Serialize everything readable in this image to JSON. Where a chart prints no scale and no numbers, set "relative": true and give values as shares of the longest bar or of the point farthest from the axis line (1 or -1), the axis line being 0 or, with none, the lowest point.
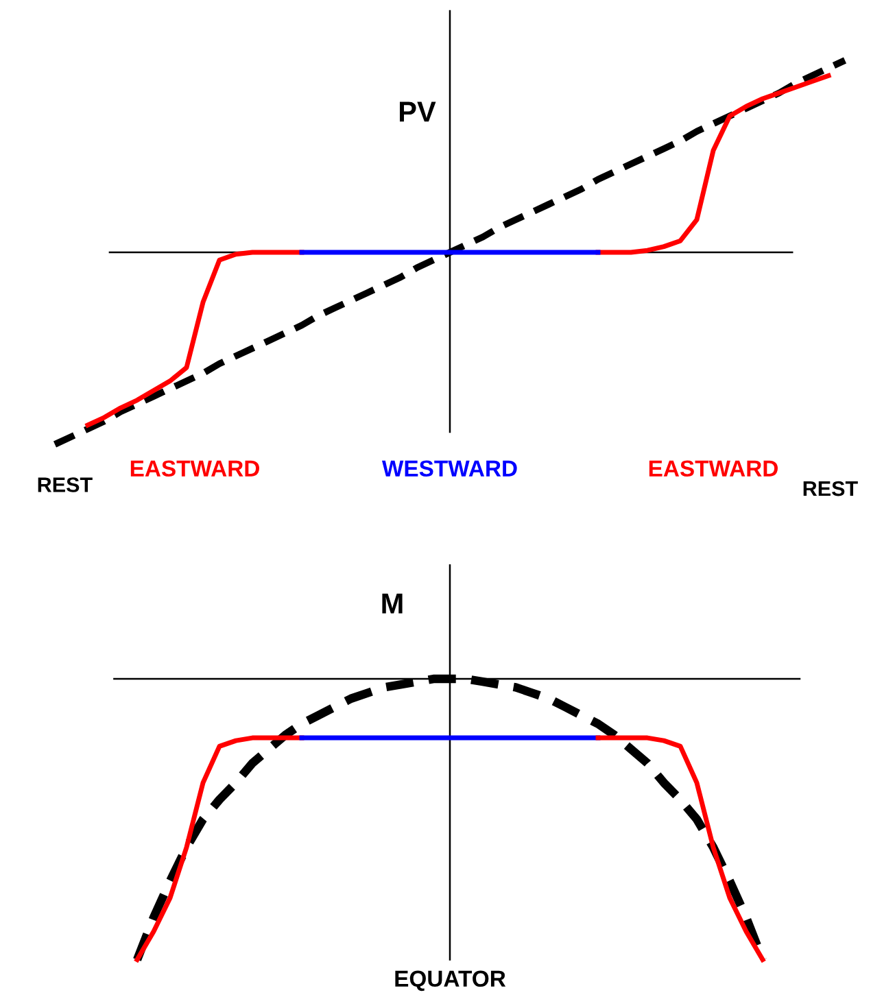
{
  "chart_data": [
    {
      "type": "line",
      "relative": true,
      "ylabel": "PV",
      "categories": [
        null,
        null,
        null,
        null,
        null,
        null,
        null,
        null,
        null,
        null,
        null,
        null,
        null,
        null,
        null,
        null,
        null,
        null,
        null,
        null,
        null,
        null,
        null,
        null,
        null,
        null,
        null,
        null,
        null,
        null,
        null,
        null,
        null,
        null,
        null,
        null,
        null,
        null,
        null,
        null,
        null,
        null,
        null,
        null,
        null,
        null,
        null,
        null,
        null
      ],
      "series": [
        {
          "color": "#000000",
          "line_style": "dashed",
          "values": [
            -1,
            -0.96,
            -0.92,
            -0.88,
            -0.83,
            -0.79,
            -0.75,
            -0.71,
            -0.67,
            -0.63,
            -0.58,
            -0.54,
            -0.5,
            -0.46,
            -0.42,
            -0.38,
            -0.33,
            -0.29,
            -0.25,
            -0.21,
            -0.17,
            -0.13,
            -0.08,
            -0.04,
            0,
            0.04,
            0.08,
            0.13,
            0.17,
            0.21,
            0.25,
            0.29,
            0.33,
            0.38,
            0.42,
            0.46,
            0.5,
            0.54,
            0.58,
            0.63,
            0.67,
            0.71,
            0.75,
            0.79,
            0.83,
            0.88,
            0.92,
            0.96,
            1
          ]
        },
        {
          "name": "EASTWARD",
          "color": "#ff0000",
          "values": [
            null,
            null,
            -0.9,
            -0.86,
            -0.81,
            -0.77,
            -0.72,
            -0.67,
            -0.6,
            -0.26,
            -0.04,
            -0.01,
            0,
            0,
            0,
            0,
            null,
            null,
            null,
            null,
            null,
            null,
            null,
            null,
            null,
            null,
            null,
            null,
            null,
            null,
            null,
            null,
            null,
            0,
            0,
            0,
            0.01,
            0.03,
            0.06,
            0.17,
            0.53,
            0.71,
            0.76,
            0.8,
            0.83,
            0.86,
            0.89,
            0.92,
            null
          ]
        },
        {
          "name": "WESTWARD",
          "color": "#0000ff",
          "values": [
            null,
            null,
            null,
            null,
            null,
            null,
            null,
            null,
            null,
            null,
            null,
            null,
            null,
            null,
            null,
            0,
            0,
            0,
            0,
            0,
            0,
            0,
            0,
            0,
            0,
            0,
            0,
            0,
            0,
            0,
            0,
            0,
            0,
            0,
            null,
            null,
            null,
            null,
            null,
            null,
            null,
            null,
            null,
            null,
            null,
            null,
            null,
            null,
            null
          ]
        }
      ],
      "annotations": [
        "REST",
        "REST"
      ]
    },
    {
      "type": "line",
      "relative": true,
      "ylabel": "M",
      "xlabel": "EQUATOR",
      "categories": [
        null,
        null,
        null,
        null,
        null,
        null,
        null,
        null,
        null,
        null,
        null,
        null,
        null,
        null,
        null,
        null,
        null,
        null,
        null,
        null,
        null,
        null,
        null,
        null,
        null,
        null,
        null,
        null,
        null,
        null,
        null,
        null,
        null,
        null,
        null,
        null,
        null,
        null,
        null,
        null,
        null,
        null,
        null,
        null,
        null,
        null,
        null,
        null,
        null
      ],
      "series": [
        {
          "color": "#000000",
          "line_style": "dashed",
          "values": [
            null,
            null,
            null,
            null,
            null,
            -1,
            -0.85,
            -0.72,
            -0.6,
            -0.5,
            -0.43,
            -0.37,
            -0.3,
            -0.25,
            -0.2,
            -0.16,
            -0.13,
            -0.1,
            -0.07,
            -0.05,
            -0.03,
            -0.02,
            -0.01,
            0,
            0,
            0,
            -0.01,
            -0.02,
            -0.03,
            -0.05,
            -0.07,
            -0.1,
            -0.13,
            -0.16,
            -0.2,
            -0.25,
            -0.3,
            -0.37,
            -0.43,
            -0.5,
            -0.6,
            -0.72,
            -0.85,
            -1,
            null,
            null,
            null,
            null,
            null
          ]
        },
        {
          "color": "#ff0000",
          "values": [
            null,
            null,
            null,
            null,
            null,
            -1,
            -0.9,
            -0.78,
            -0.6,
            -0.37,
            -0.24,
            -0.22,
            -0.21,
            -0.21,
            -0.21,
            -0.21,
            null,
            null,
            null,
            null,
            null,
            null,
            null,
            null,
            null,
            null,
            null,
            null,
            null,
            null,
            null,
            null,
            null,
            null,
            null,
            null,
            null,
            null,
            null,
            null,
            null,
            null,
            null,
            null,
            null,
            null,
            null,
            null,
            null
          ]
        },
        {
          "color": "#0000ff",
          "values": [
            null,
            null,
            null,
            null,
            null,
            null,
            null,
            null,
            null,
            null,
            null,
            null,
            null,
            null,
            null,
            -0.21,
            -0.21,
            -0.21,
            -0.21,
            -0.21,
            -0.21,
            -0.21,
            -0.21,
            -0.21,
            -0.21,
            -0.21,
            -0.21,
            -0.21,
            -0.21,
            -0.21,
            -0.21,
            -0.21,
            -0.21,
            -0.21,
            null,
            null,
            null,
            null,
            null,
            null,
            null,
            null,
            null,
            null,
            null,
            null,
            null,
            null,
            null
          ]
        },
        {
          "color": "#ff0000",
          "values": [
            null,
            null,
            null,
            null,
            null,
            null,
            null,
            null,
            null,
            null,
            null,
            null,
            null,
            null,
            null,
            null,
            null,
            null,
            null,
            null,
            null,
            null,
            null,
            null,
            null,
            null,
            null,
            null,
            null,
            null,
            null,
            null,
            null,
            -0.21,
            -0.21,
            -0.21,
            -0.21,
            -0.22,
            -0.24,
            -0.37,
            -0.6,
            -0.78,
            -0.9,
            -1,
            null,
            null,
            null,
            null,
            null
          ]
        }
      ]
    }
  ]
}
